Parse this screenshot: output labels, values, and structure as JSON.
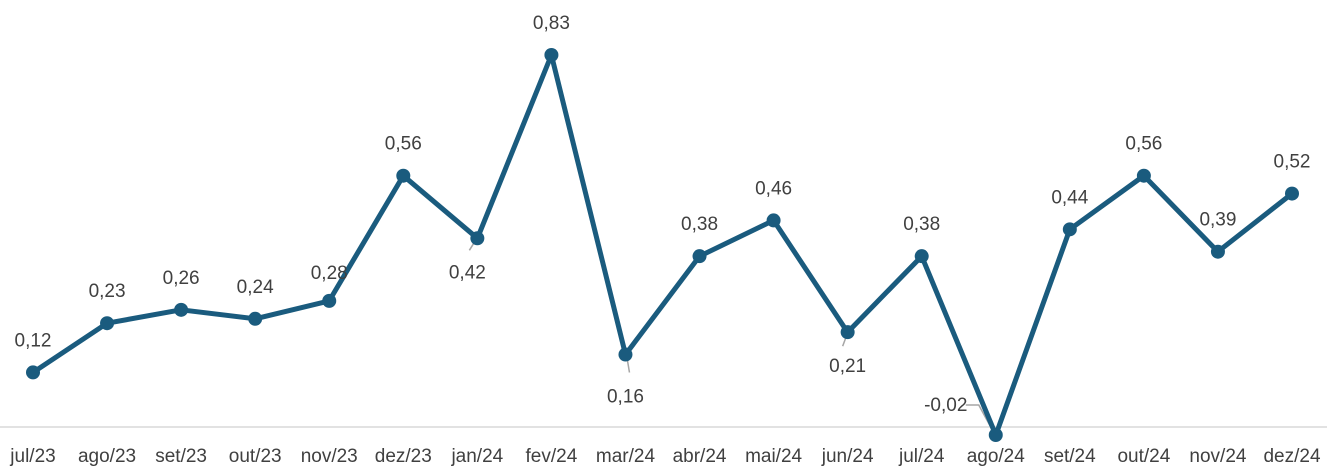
{
  "chart_data": {
    "type": "line",
    "categories": [
      "jul/23",
      "ago/23",
      "set/23",
      "out/23",
      "nov/23",
      "dez/23",
      "jan/24",
      "fev/24",
      "mar/24",
      "abr/24",
      "mai/24",
      "jun/24",
      "jul/24",
      "ago/24",
      "set/24",
      "out/24",
      "nov/24",
      "dez/24"
    ],
    "series": [
      {
        "values": [
          0.12,
          0.23,
          0.26,
          0.24,
          0.28,
          0.56,
          0.42,
          0.83,
          0.16,
          0.38,
          0.46,
          0.21,
          0.38,
          -0.02,
          0.44,
          0.56,
          0.39,
          0.52
        ],
        "labels": [
          "0,12",
          "0,23",
          "0,26",
          "0,24",
          "0,28",
          "0,56",
          "0,42",
          "0,83",
          "0,16",
          "0,38",
          "0,46",
          "0,21",
          "0,38",
          "-0,02",
          "0,44",
          "0,56",
          "0,39",
          "0,52"
        ]
      }
    ],
    "title": "",
    "xlabel": "",
    "ylabel": "",
    "ylim": [
      -0.02,
      0.83
    ],
    "grid": false,
    "legend": "none",
    "colors": {
      "line": "#1a5b7e",
      "baseline": "#d9d9d9",
      "leader": "#a6a6a6",
      "text": "#404040"
    }
  }
}
